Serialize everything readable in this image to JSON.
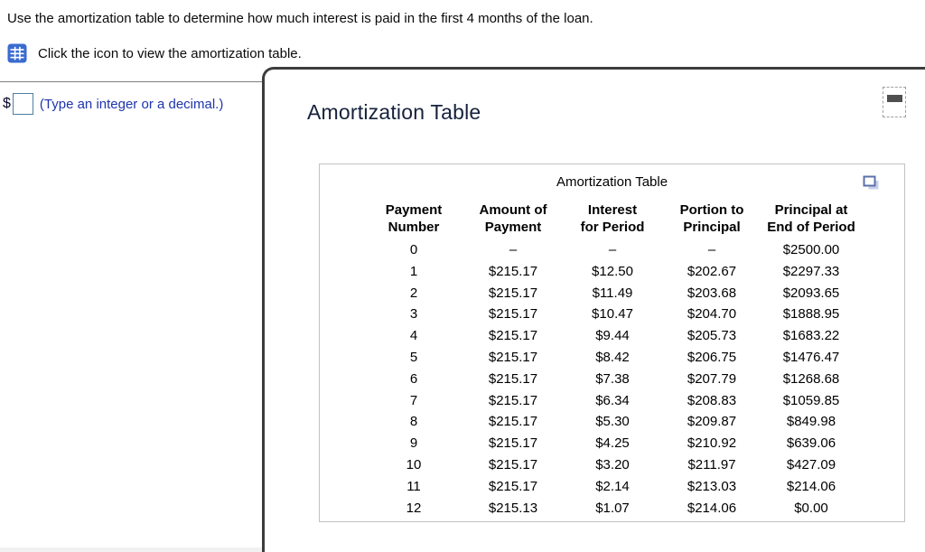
{
  "question": {
    "prompt": "Use the amortization table to determine how much interest is paid in the first 4 months of the loan.",
    "icon_instruction": "Click the icon to view the amortization table.",
    "currency_symbol": "$",
    "answer_value": "",
    "answer_hint": "(Type an integer or a decimal.)"
  },
  "panel": {
    "title": "Amortization Table"
  },
  "table": {
    "title": "Amortization Table",
    "headers": [
      {
        "line1": "Payment",
        "line2": "Number"
      },
      {
        "line1": "Amount of",
        "line2": "Payment"
      },
      {
        "line1": "Interest",
        "line2": "for Period"
      },
      {
        "line1": "Portion to",
        "line2": "Principal"
      },
      {
        "line1": "Principal at",
        "line2": "End of Period"
      }
    ],
    "rows": [
      [
        "0",
        "–",
        "–",
        "–",
        "$2500.00"
      ],
      [
        "1",
        "$215.17",
        "$12.50",
        "$202.67",
        "$2297.33"
      ],
      [
        "2",
        "$215.17",
        "$11.49",
        "$203.68",
        "$2093.65"
      ],
      [
        "3",
        "$215.17",
        "$10.47",
        "$204.70",
        "$1888.95"
      ],
      [
        "4",
        "$215.17",
        "$9.44",
        "$205.73",
        "$1683.22"
      ],
      [
        "5",
        "$215.17",
        "$8.42",
        "$206.75",
        "$1476.47"
      ],
      [
        "6",
        "$215.17",
        "$7.38",
        "$207.79",
        "$1268.68"
      ],
      [
        "7",
        "$215.17",
        "$6.34",
        "$208.83",
        "$1059.85"
      ],
      [
        "8",
        "$215.17",
        "$5.30",
        "$209.87",
        "$849.98"
      ],
      [
        "9",
        "$215.17",
        "$4.25",
        "$210.92",
        "$639.06"
      ],
      [
        "10",
        "$215.17",
        "$3.20",
        "$211.97",
        "$427.09"
      ],
      [
        "11",
        "$215.17",
        "$2.14",
        "$213.03",
        "$214.06"
      ],
      [
        "12",
        "$215.13",
        "$1.07",
        "$214.06",
        "$0.00"
      ]
    ]
  },
  "icons": {
    "table_icon": "table-grid",
    "copy_icon": "open-table-in-new-window",
    "minimize_icon": "minus"
  },
  "colors": {
    "icon_blue": "#3a6bd0",
    "hint_blue": "#1e34ae",
    "input_border": "#4e7f9d",
    "panel_border": "#3d3d3d",
    "panel_title": "#16223c",
    "table_border": "#c2c2c2",
    "copy_icon_blue": "#5d71a9"
  }
}
